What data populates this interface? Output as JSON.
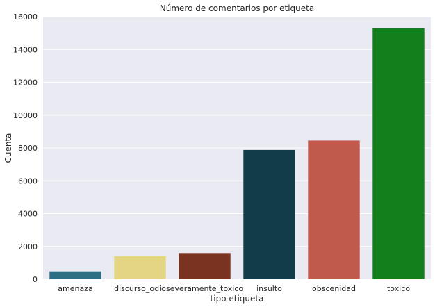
{
  "chart_data": {
    "type": "bar",
    "title": "Número de comentarios por etiqueta",
    "xlabel": "tipo etiqueta",
    "ylabel": "Cuenta",
    "categories": [
      "amenaza",
      "discurso_odio",
      "severamente_toxico",
      "insulto",
      "obscenidad",
      "toxico"
    ],
    "values": [
      478,
      1405,
      1595,
      7877,
      8449,
      15294
    ],
    "colors": [
      "#2f6f84",
      "#e3d584",
      "#7a3320",
      "#133c4a",
      "#bf5a4d",
      "#127e1c"
    ],
    "ylim": [
      0,
      16000
    ],
    "yticks": [
      0,
      2000,
      4000,
      6000,
      8000,
      10000,
      12000,
      14000,
      16000
    ],
    "grid": true,
    "background": "#eaeaf2"
  }
}
